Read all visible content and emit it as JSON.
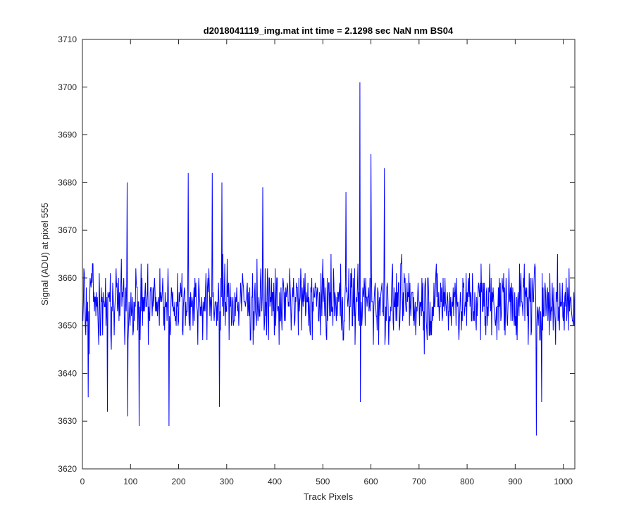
{
  "chart_data": {
    "type": "line",
    "title": "d2018041119_img.mat int time = 2.1298 sec  NaN nm BS04",
    "xlabel": "Track Pixels",
    "ylabel": "Signal (ADU) at pixel 555",
    "xlim": [
      0,
      1024
    ],
    "ylim": [
      3620,
      3710
    ],
    "x_ticks": [
      0,
      100,
      200,
      300,
      400,
      500,
      600,
      700,
      800,
      900,
      1000
    ],
    "y_ticks": [
      3620,
      3630,
      3640,
      3650,
      3660,
      3670,
      3680,
      3690,
      3700,
      3710
    ],
    "grid": false,
    "line_color": "#0000ff",
    "series": [
      {
        "x_start": 1,
        "x_step": 1,
        "point_count": 1024,
        "mean_value": 3655,
        "baseline_spread": 9,
        "noted_extremes": [
          {
            "x": 577,
            "y": 3701
          },
          {
            "x": 600,
            "y": 3686
          },
          {
            "x": 628,
            "y": 3683
          },
          {
            "x": 220,
            "y": 3682
          },
          {
            "x": 270,
            "y": 3682
          },
          {
            "x": 93,
            "y": 3680
          },
          {
            "x": 290,
            "y": 3680
          },
          {
            "x": 375,
            "y": 3679
          },
          {
            "x": 548,
            "y": 3678
          },
          {
            "x": 944,
            "y": 3627
          },
          {
            "x": 118,
            "y": 3629
          },
          {
            "x": 180,
            "y": 3629
          },
          {
            "x": 52,
            "y": 3632
          },
          {
            "x": 94,
            "y": 3631
          },
          {
            "x": 285,
            "y": 3633
          },
          {
            "x": 578,
            "y": 3634
          },
          {
            "x": 12,
            "y": 3635
          },
          {
            "x": 955,
            "y": 3634
          }
        ]
      }
    ]
  }
}
